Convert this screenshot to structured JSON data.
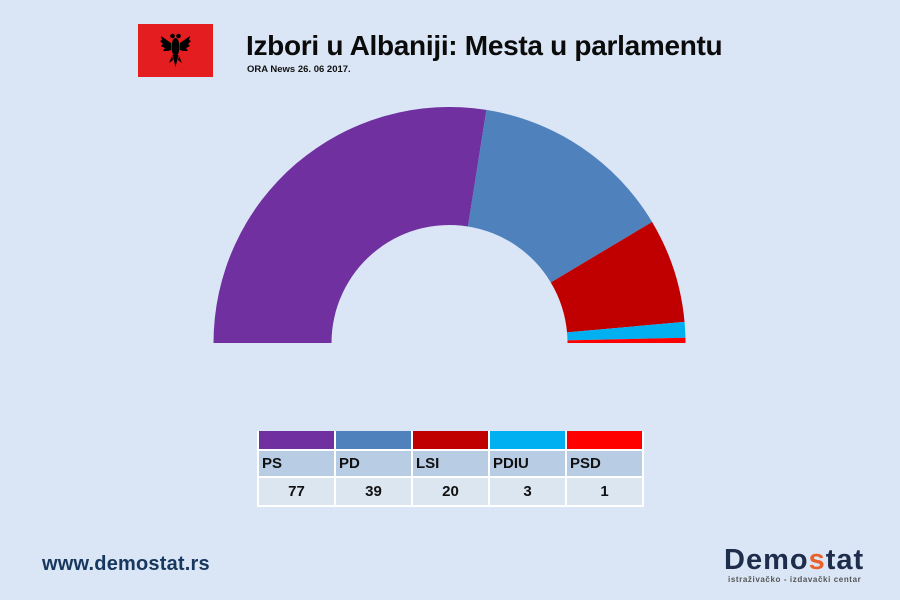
{
  "header": {
    "title": "Izbori u Albaniji: Mesta u parlamentu",
    "subtitle": "ORA News 26. 06 2017.",
    "flag_icon": "albania-flag-icon"
  },
  "colors": {
    "background": "#dae6f6",
    "PS": "#7030a0",
    "PD": "#4f81bd",
    "LSI": "#c00000",
    "PDIU": "#00b0f0",
    "PSD": "#ff0000"
  },
  "chart_data": {
    "type": "pie",
    "subtype": "half-donut (parliament seats)",
    "title": "Izbori u Albaniji: Mesta u parlamentu",
    "subtitle": "ORA News 26. 06 2017.",
    "categories": [
      "PS",
      "PD",
      "LSI",
      "PDIU",
      "PSD"
    ],
    "values": [
      77,
      39,
      20,
      3,
      1
    ],
    "total": 140,
    "colors": [
      "#7030a0",
      "#4f81bd",
      "#c00000",
      "#00b0f0",
      "#ff0000"
    ],
    "legend_position": "bottom (table)"
  },
  "legend": {
    "items": [
      {
        "label": "PS",
        "value": "77"
      },
      {
        "label": "PD",
        "value": "39"
      },
      {
        "label": "LSI",
        "value": "20"
      },
      {
        "label": "PDIU",
        "value": "3"
      },
      {
        "label": "PSD",
        "value": "1"
      }
    ]
  },
  "footer": {
    "website": "www.demostat.rs",
    "brand_part1": "Demo",
    "brand_accent": "s",
    "brand_part2": "tat",
    "brand_tagline": "istraživačko - izdavački  centar"
  }
}
